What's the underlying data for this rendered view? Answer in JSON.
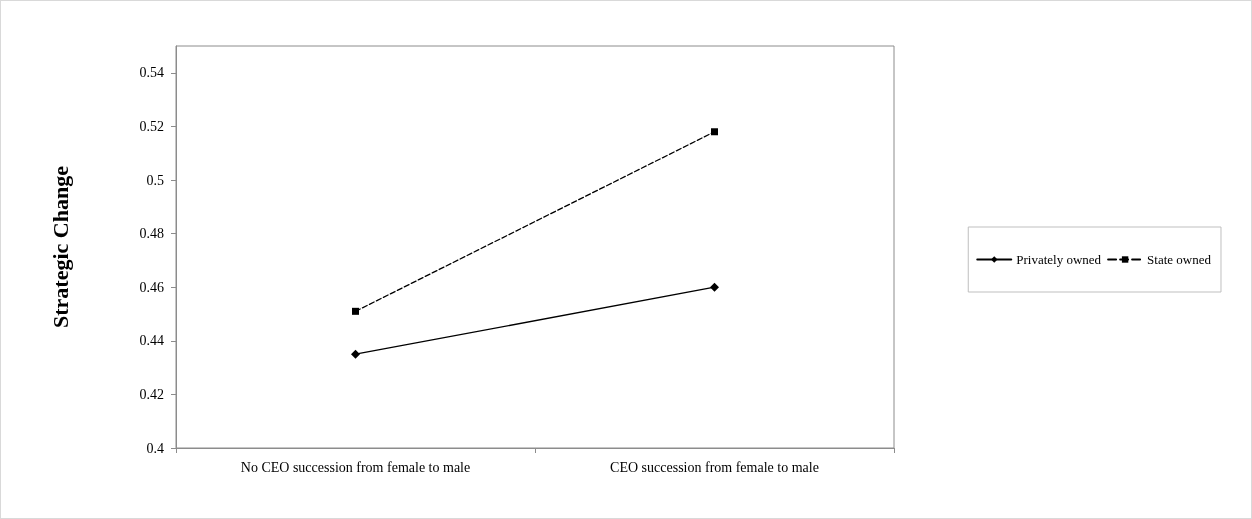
{
  "chart_data": {
    "type": "line",
    "ylabel": "Strategic Change",
    "categories": [
      "No CEO succession from female to male",
      "CEO succession from female to male"
    ],
    "series": [
      {
        "name": "Privately owned",
        "color": "#000000",
        "values": [
          0.435,
          0.46
        ],
        "marker": "diamond",
        "line_style": "solid"
      },
      {
        "name": "State owned",
        "color": "#000000",
        "values": [
          0.451,
          0.518
        ],
        "marker": "square",
        "line_style": "dashed"
      }
    ],
    "ylim": [
      0.4,
      0.55
    ],
    "yticks": [
      0.4,
      0.42,
      0.44,
      0.46,
      0.48,
      0.5,
      0.52,
      0.54
    ],
    "grid": false,
    "legend": "right"
  }
}
